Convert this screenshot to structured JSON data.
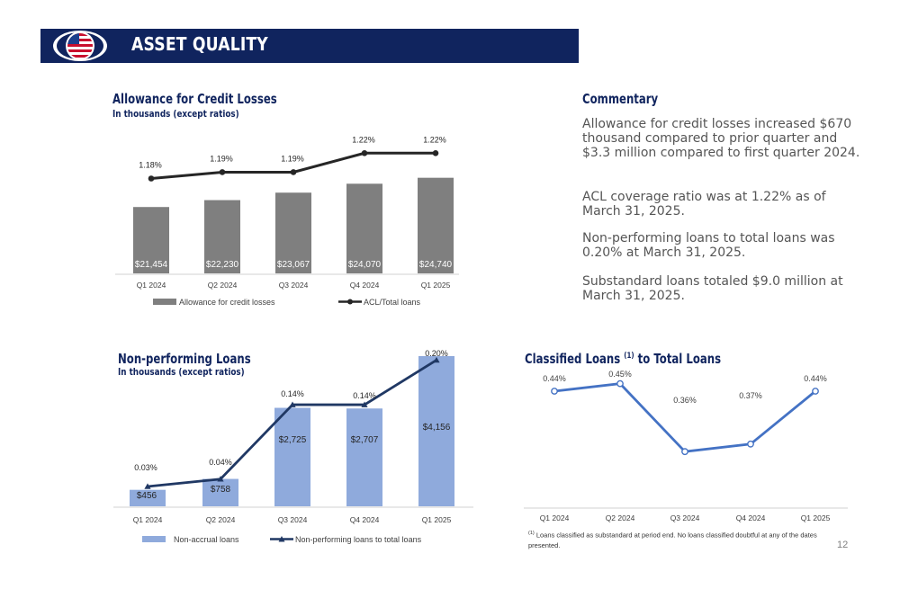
{
  "header": {
    "title": "ASSET QUALITY"
  },
  "page_number": "12",
  "commentary": {
    "title": "Commentary",
    "paragraphs": [
      "Allowance for credit losses increased $670 thousand compared to prior quarter and $3.3 million compared to first quarter 2024.",
      "ACL coverage ratio was at 1.22% as of March 31, 2025.",
      "Non-performing loans to total loans was 0.20% at March 31, 2025.",
      "Substandard loans totaled $9.0 million at March 31, 2025."
    ]
  },
  "footnote": {
    "marker": "(1)",
    "text": "Loans classified as substandard at period end. No loans classified doubtful at any of the dates presented."
  },
  "chart_data": [
    {
      "type": "bar",
      "title": "Allowance for Credit Losses",
      "subtitle": "In thousands (except ratios)",
      "categories": [
        "Q1 2024",
        "Q2 2024",
        "Q3 2024",
        "Q4 2024",
        "Q1 2025"
      ],
      "series": [
        {
          "name": "Allowance for credit losses",
          "type": "bar",
          "values": [
            21454,
            22230,
            23067,
            24070,
            24740
          ],
          "labels": [
            "$21,454",
            "$22,230",
            "$23,067",
            "$24,070",
            "$24,740"
          ],
          "color": "#7f7f7f"
        },
        {
          "name": "ACL/Total loans",
          "type": "line",
          "values": [
            1.18,
            1.19,
            1.19,
            1.22,
            1.22
          ],
          "labels": [
            "1.18%",
            "1.19%",
            "1.19%",
            "1.22%",
            "1.22%"
          ],
          "color": "#262626",
          "marker": "circle"
        }
      ],
      "legend": "bottom",
      "grid": false
    },
    {
      "type": "bar",
      "title": "Non-performing Loans",
      "subtitle": "In thousands (except ratios)",
      "categories": [
        "Q1 2024",
        "Q2 2024",
        "Q3 2024",
        "Q4 2024",
        "Q1 2025"
      ],
      "series": [
        {
          "name": "Non-accrual loans",
          "type": "bar",
          "values": [
            456,
            758,
            2725,
            2707,
            4156
          ],
          "labels": [
            "$456",
            "$758",
            "$2,725",
            "$2,707",
            "$4,156"
          ],
          "color": "#8faadc"
        },
        {
          "name": "Non-performing loans to total loans",
          "type": "line",
          "values": [
            0.03,
            0.04,
            0.14,
            0.14,
            0.2
          ],
          "labels": [
            "0.03%",
            "0.04%",
            "0.14%",
            "0.14%",
            "0.20%"
          ],
          "color": "#203864",
          "marker": "triangle"
        }
      ],
      "legend": "bottom",
      "grid": false
    },
    {
      "type": "line",
      "title": "Classified Loans",
      "title_sup": "(1)",
      "title_suffix": "to Total Loans",
      "categories": [
        "Q1 2024",
        "Q2 2024",
        "Q3 2024",
        "Q4 2024",
        "Q1 2025"
      ],
      "series": [
        {
          "type": "line",
          "values": [
            0.44,
            0.45,
            0.36,
            0.37,
            0.44
          ],
          "labels": [
            "0.44%",
            "0.45%",
            "0.36%",
            "0.37%",
            "0.44%"
          ],
          "color": "#4472c4",
          "marker": "circle"
        }
      ],
      "grid": false
    }
  ]
}
